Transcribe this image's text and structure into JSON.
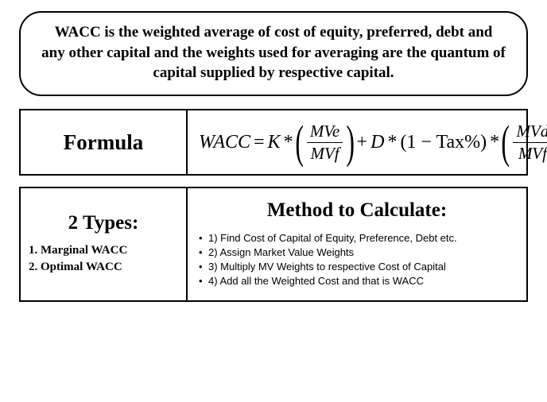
{
  "definition": "WACC is the weighted average of cost of equity, preferred, debt and any other capital and the weights used for averaging are the quantum of capital supplied by respective capital.",
  "formula_panel": {
    "label": "Formula",
    "formula": {
      "lhs": "WACC",
      "eq": "=",
      "K": "K",
      "mul1": "*",
      "frac1": {
        "num": "MVe",
        "den": "MVf"
      },
      "plus": "+",
      "D": "D",
      "mul2": "*",
      "tax_group": "(1 − Tax%)",
      "mul3": "*",
      "frac2": {
        "num": "MVd",
        "den": "MVf"
      }
    }
  },
  "bottom_panel": {
    "types": {
      "title": "2 Types:",
      "items": [
        "1. Marginal WACC",
        "2. Optimal WACC"
      ]
    },
    "method": {
      "title": "Method to Calculate:",
      "steps": [
        "1) Find Cost of Capital of Equity, Preference, Debt etc.",
        "2) Assign Market Value Weights",
        "3) Multiply MV Weights to respective Cost of Capital",
        "4) Add all the Weighted Cost and that is WACC"
      ]
    }
  },
  "styles": {
    "border_color": "#000000",
    "bg_color": "#ffffff",
    "def_font_size": 19,
    "heading_font_size": 27,
    "formula_font_size": 24,
    "types_item_font_size": 15,
    "method_step_font_size": 13,
    "border_radius_def": 28
  }
}
